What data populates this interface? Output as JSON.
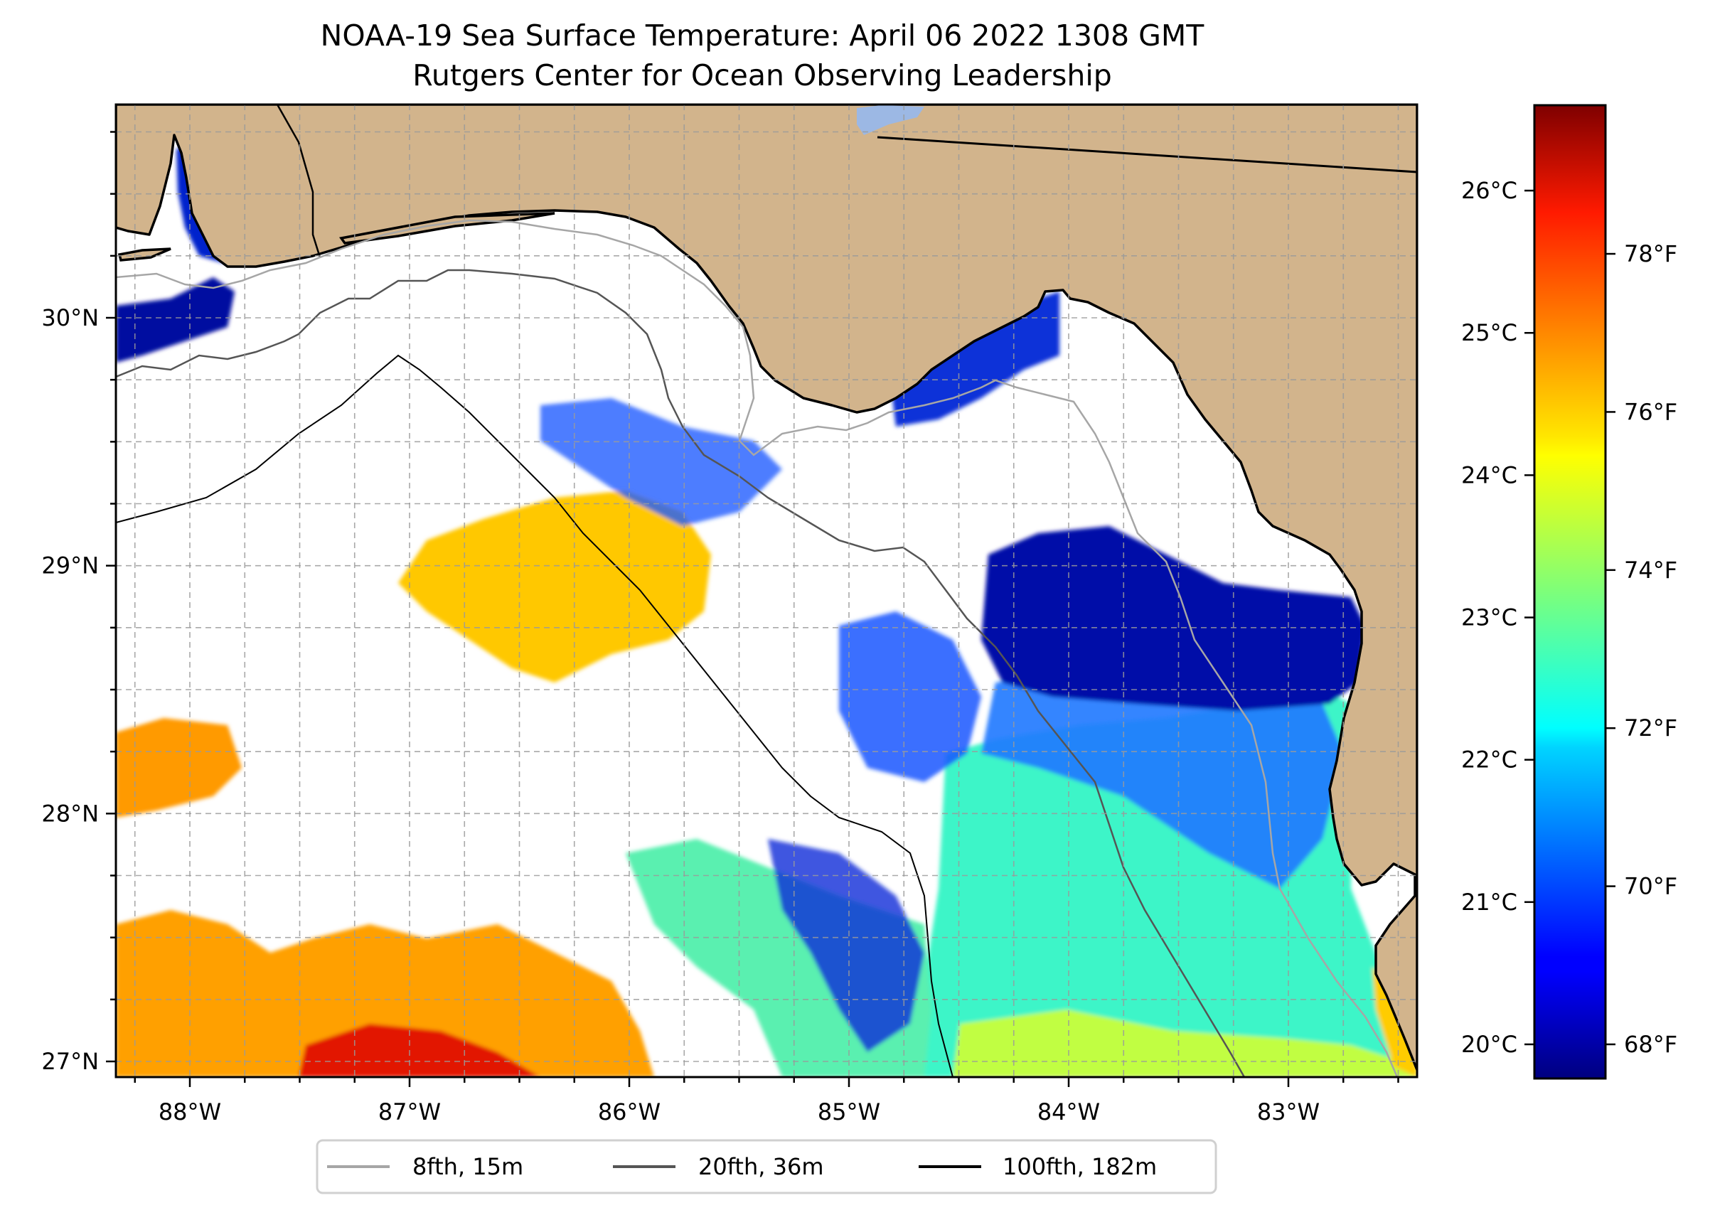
{
  "chart_data": {
    "type": "heatmap",
    "title": "NOAA-19 Sea Surface Temperature: April 06 2022 1308 GMT",
    "subtitle": "Rutgers Center for Ocean Observing Leadership",
    "xlabel": "",
    "ylabel": "",
    "xlim": [
      -88.34,
      -82.41
    ],
    "ylim": [
      26.94,
      30.86
    ],
    "grid": true,
    "x_ticks": [
      {
        "value": -88,
        "label": "88°W"
      },
      {
        "value": -87,
        "label": "87°W"
      },
      {
        "value": -86,
        "label": "86°W"
      },
      {
        "value": -85,
        "label": "85°W"
      },
      {
        "value": -84,
        "label": "84°W"
      },
      {
        "value": -83,
        "label": "83°W"
      }
    ],
    "y_ticks": [
      {
        "value": 27,
        "label": "27°N"
      },
      {
        "value": 28,
        "label": "28°N"
      },
      {
        "value": 29,
        "label": "29°N"
      },
      {
        "value": 30,
        "label": "30°N"
      }
    ],
    "minor_tick_step_deg": 0.25,
    "colorbar": {
      "colormap": "jet",
      "range_c": [
        19.76,
        26.6
      ],
      "celsius_ticks": [
        {
          "value": 20,
          "label": "20°C"
        },
        {
          "value": 21,
          "label": "21°C"
        },
        {
          "value": 22,
          "label": "22°C"
        },
        {
          "value": 23,
          "label": "23°C"
        },
        {
          "value": 24,
          "label": "24°C"
        },
        {
          "value": 25,
          "label": "25°C"
        },
        {
          "value": 26,
          "label": "26°C"
        }
      ],
      "fahrenheit_ticks": [
        {
          "value": 68,
          "label": "68°F"
        },
        {
          "value": 70,
          "label": "70°F"
        },
        {
          "value": 72,
          "label": "72°F"
        },
        {
          "value": 74,
          "label": "74°F"
        },
        {
          "value": 76,
          "label": "76°F"
        },
        {
          "value": 78,
          "label": "78°F"
        }
      ]
    },
    "legend": {
      "placement": "bottom-center",
      "entries": [
        {
          "label": "8fth, 15m",
          "color": "#a6a6a6"
        },
        {
          "label": "20fth, 36m",
          "color": "#555555"
        },
        {
          "label": "100fth, 182m",
          "color": "#000000"
        }
      ]
    },
    "land_color": "#d2b48c",
    "water_no_data_color": "#ffffff"
  }
}
